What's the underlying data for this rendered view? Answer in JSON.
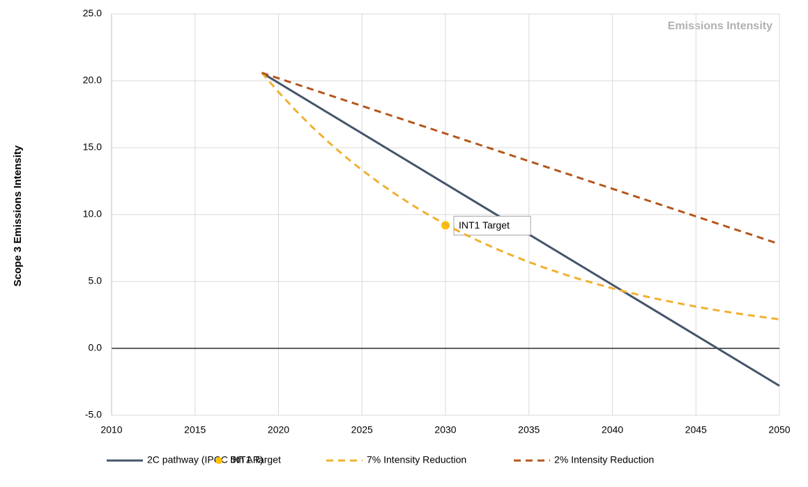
{
  "chart_data": {
    "type": "line",
    "title": "Emissions Intensity",
    "y_label": "Scope 3 Emissions Intensity",
    "xlim": [
      2010,
      2050
    ],
    "xticks": [
      2010,
      2015,
      2020,
      2025,
      2030,
      2035,
      2040,
      2045,
      2050
    ],
    "ylim": [
      -5,
      25
    ],
    "yticks": [
      {
        "value": -5,
        "label": "-5.0"
      },
      {
        "value": 0,
        "label": "0.0"
      },
      {
        "value": 5,
        "label": "5.0"
      },
      {
        "value": 10,
        "label": "10.0"
      },
      {
        "value": 15,
        "label": "15.0"
      },
      {
        "value": 20,
        "label": "20.0"
      },
      {
        "value": 25,
        "label": "25.0"
      }
    ],
    "grid": true,
    "legend": "bottom",
    "series": [
      {
        "name": "2C pathway (IPCC 5th AR)",
        "color": "#44546a",
        "style": "solid",
        "x": [
          2019,
          2050
        ],
        "values": [
          20.6,
          -2.8
        ]
      },
      {
        "name": "INT1 Target",
        "color": "#ffc000",
        "style": "marker",
        "x": [
          2030
        ],
        "values": [
          9.2
        ],
        "annotation": "INT1 Target"
      },
      {
        "name": "7% Intensity Reduction",
        "color": "#f0b030",
        "style": "dashed",
        "x": [
          2019,
          2020,
          2021,
          2022,
          2023,
          2024,
          2025,
          2026,
          2027,
          2028,
          2029,
          2030,
          2031,
          2032,
          2033,
          2034,
          2035,
          2036,
          2037,
          2038,
          2039,
          2040,
          2041,
          2042,
          2043,
          2044,
          2045,
          2046,
          2047,
          2048,
          2049,
          2050
        ],
        "values": [
          20.6,
          19.16,
          17.82,
          16.57,
          15.41,
          14.33,
          13.33,
          12.4,
          11.53,
          10.72,
          9.97,
          9.27,
          8.62,
          8.02,
          7.46,
          6.94,
          6.45,
          6.0,
          5.58,
          5.19,
          4.83,
          4.49,
          4.17,
          3.88,
          3.61,
          3.36,
          3.12,
          2.9,
          2.7,
          2.51,
          2.34,
          2.17
        ]
      },
      {
        "name": "2% Intensity Reduction",
        "color": "#b5561c",
        "style": "dashed",
        "x": [
          2019,
          2050
        ],
        "values": [
          20.6,
          7.8
        ]
      }
    ]
  }
}
